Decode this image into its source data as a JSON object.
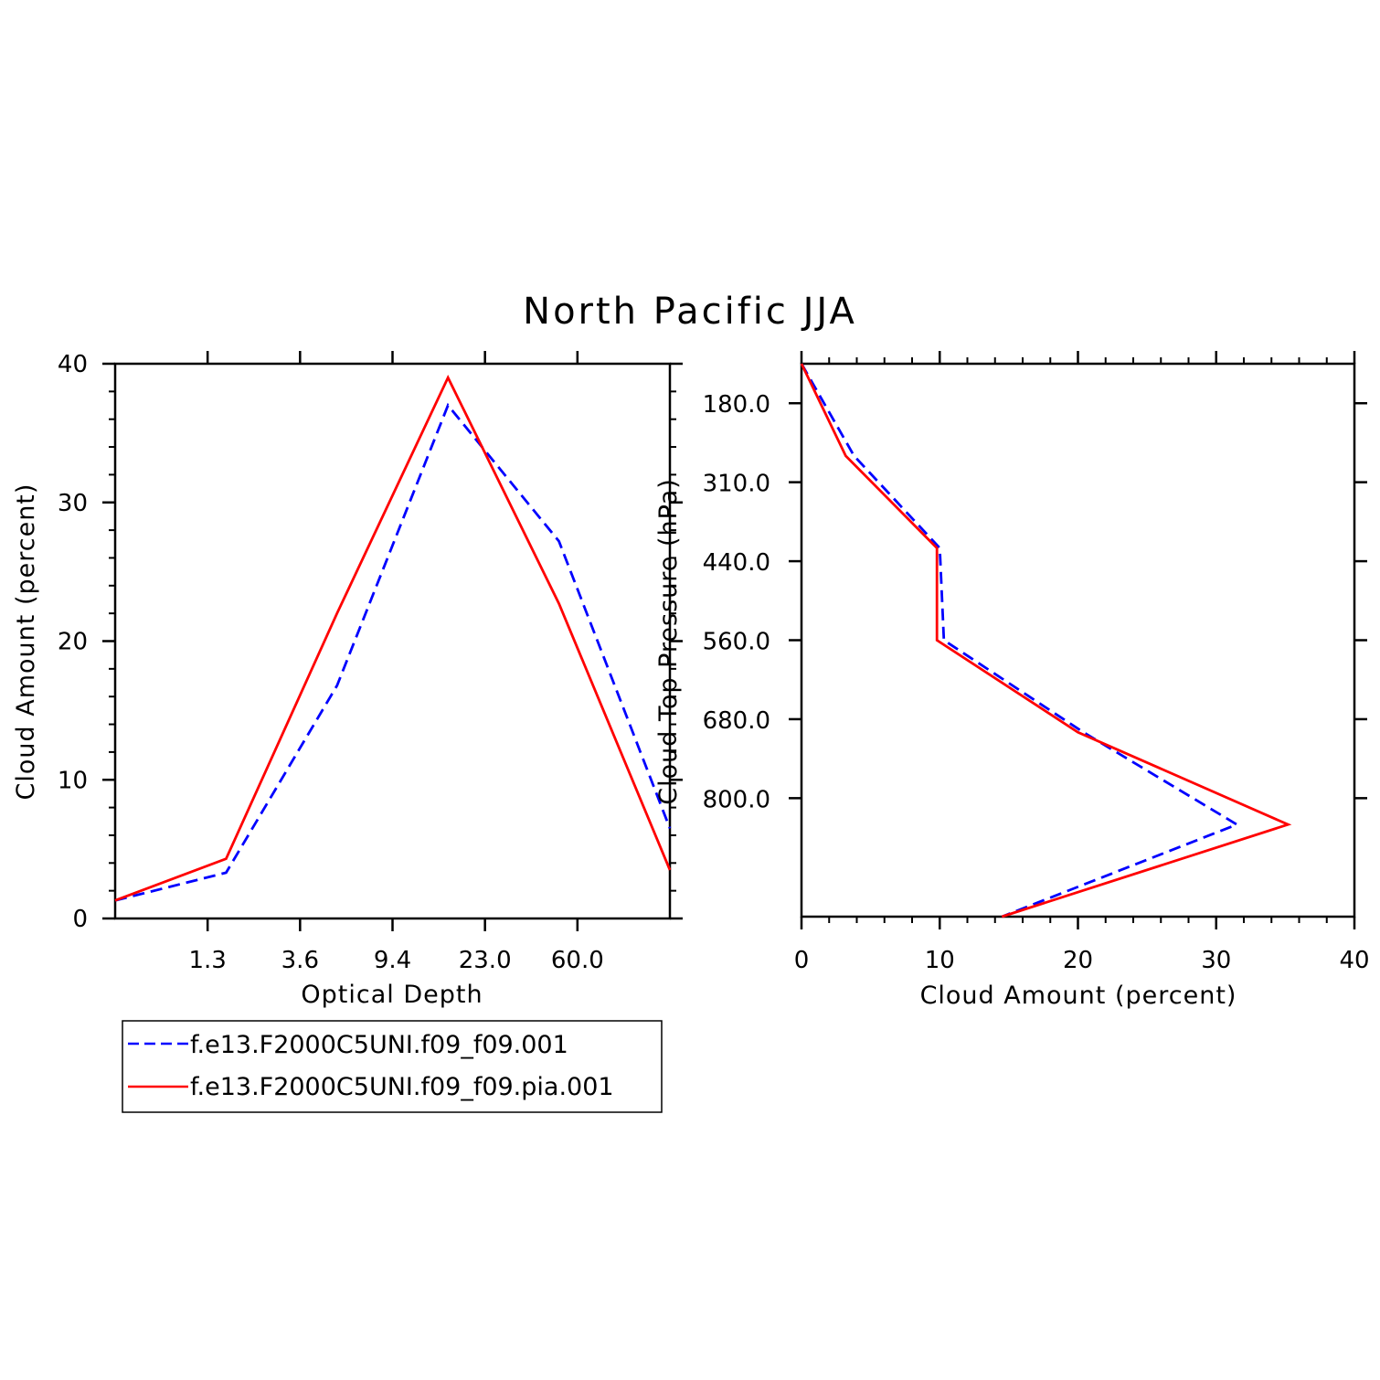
{
  "title": "North Pacific JJA",
  "colors": {
    "series_a": "#0000ff",
    "series_b": "#ff0000"
  },
  "legend": {
    "entries": [
      {
        "label": "f.e13.F2000C5UNI.f09_f09.001",
        "style": "dashed",
        "color": "#0000ff"
      },
      {
        "label": "f.e13.F2000C5UNI.f09_f09.pia.001",
        "style": "solid",
        "color": "#ff0000"
      }
    ]
  },
  "chart_data": [
    {
      "type": "line",
      "xlabel": "Optical Depth",
      "ylabel": "Cloud Amount (percent)",
      "x_tick_labels": [
        "1.3",
        "3.6",
        "9.4",
        "23.0",
        "60.0"
      ],
      "y_ticks": [
        0,
        10,
        20,
        30,
        40
      ],
      "ylim": [
        0,
        40
      ],
      "series": [
        {
          "name": "f.e13.F2000C5UNI.f09_f09.001",
          "values": [
            1.3,
            3.3,
            16.8,
            37.0,
            27.2,
            6.5
          ]
        },
        {
          "name": "f.e13.F2000C5UNI.f09_f09.pia.001",
          "values": [
            1.3,
            4.3,
            22.0,
            39.0,
            22.7,
            3.5
          ]
        }
      ]
    },
    {
      "type": "line",
      "xlabel": "Cloud Amount (percent)",
      "ylabel": "Cloud Top Pressure (hPa)",
      "x_ticks": [
        0,
        10,
        20,
        30,
        40
      ],
      "xlim": [
        0,
        40
      ],
      "y_tick_labels": [
        "180.0",
        "310.0",
        "440.0",
        "560.0",
        "680.0",
        "800.0"
      ],
      "series": [
        {
          "name": "f.e13.F2000C5UNI.f09_f09.001",
          "values": [
            0.0,
            3.8,
            10.0,
            10.3,
            20.4,
            31.5,
            14.5
          ]
        },
        {
          "name": "f.e13.F2000C5UNI.f09_f09.pia.001",
          "values": [
            0.0,
            3.2,
            9.8,
            9.8,
            20.0,
            35.2,
            14.5
          ]
        }
      ]
    }
  ]
}
